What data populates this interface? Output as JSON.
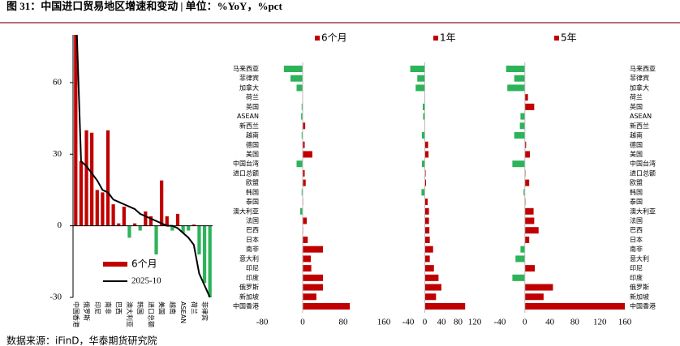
{
  "title": "图 31：中国进口贸易地区增速和变动 | 单位：%YoY，%pct",
  "source": "数据来源：iFinD，华泰期货研究院",
  "chart_data": [
    {
      "type": "bar_line",
      "categories": [
        "中国香港",
        null,
        "俄罗斯",
        null,
        "印尼",
        null,
        "南非",
        null,
        "巴西",
        null,
        "澳大利亚",
        null,
        "韩国",
        null,
        "进口总额",
        null,
        "美国",
        null,
        "越南",
        null,
        "ASEAN",
        null,
        "荷兰",
        null,
        "菲律宾",
        null
      ],
      "series": [
        {
          "name": "6个月",
          "type": "bar",
          "color": "#c00000",
          "negative_color": "#2db35a",
          "values": [
            93,
            27,
            40,
            39,
            15,
            14,
            40,
            9,
            1,
            8,
            -5,
            1,
            -2,
            6,
            4,
            -12,
            19,
            4,
            -2,
            5,
            -3,
            -2,
            0.5,
            -12,
            -24,
            -37
          ]
        },
        {
          "name": "2025-10",
          "type": "line",
          "color": "#000000",
          "values": [
            95,
            27,
            25,
            22,
            19,
            15,
            14,
            11,
            10,
            9,
            8,
            7,
            5,
            4,
            3,
            2,
            1,
            0,
            0,
            -1,
            -3,
            -5,
            -8,
            -20,
            -25,
            -30
          ]
        }
      ],
      "ylim": [
        -30,
        80
      ],
      "yticks": [
        -30,
        0,
        30,
        60
      ]
    },
    {
      "type": "hbar",
      "category_side": "left",
      "categories": [
        "马来西亚",
        "菲律宾",
        "加拿大",
        "荷兰",
        "英国",
        "ASEAN",
        "新西兰",
        "越南",
        "德国",
        "美国",
        "中国台湾",
        "进口总额",
        "欧盟",
        "韩国",
        "泰国",
        "澳大利亚",
        "法国",
        "巴西",
        "日本",
        "南非",
        "意大利",
        "印尼",
        "印度",
        "俄罗斯",
        "新加坡",
        "中国香港"
      ],
      "series": [
        {
          "name": "6个月",
          "color": "#c00000",
          "negative_color": "#2db35a",
          "values": [
            -37,
            -24,
            -12,
            0.5,
            -2,
            -3,
            5,
            -2,
            4,
            19,
            -12,
            4,
            6,
            -2,
            1,
            -5,
            8,
            1,
            10,
            40,
            16,
            17,
            40,
            40,
            27,
            93
          ]
        }
      ],
      "xlim": [
        -80,
        160
      ],
      "xticks": [
        -80,
        0,
        80,
        160
      ]
    },
    {
      "type": "hbar",
      "series": [
        {
          "name": "1年",
          "color": "#c00000",
          "negative_color": "#2db35a",
          "values": [
            -35,
            -18,
            -22,
            1,
            -5,
            -4,
            1,
            -7,
            8,
            9,
            -7,
            2,
            3,
            -8,
            7,
            10,
            10,
            11,
            12,
            20,
            12,
            22,
            33,
            40,
            27,
            97
          ]
        }
      ],
      "xlim": [
        -40,
        120
      ],
      "xticks": [
        -40,
        0,
        40,
        80,
        120
      ]
    },
    {
      "type": "hbar",
      "category_side": "right",
      "categories": [
        "马来西亚",
        "菲律宾",
        "加拿大",
        "荷兰",
        "英国",
        "ASEAN",
        "新西兰",
        "越南",
        "德国",
        "美国",
        "中国台湾",
        "进口总额",
        "欧盟",
        "韩国",
        "泰国",
        "澳大利亚",
        "法国",
        "巴西",
        "日本",
        "南非",
        "意大利",
        "印尼",
        "印度",
        "俄罗斯",
        "新加坡",
        "中国香港"
      ],
      "series": [
        {
          "name": "5年",
          "color": "#c00000",
          "negative_color": "#2db35a",
          "values": [
            -30,
            -17,
            -28,
            5,
            15,
            -7,
            -8,
            -17,
            2,
            8,
            -20,
            1,
            7,
            -2,
            1,
            14,
            15,
            22,
            7,
            -7,
            -15,
            16,
            -20,
            45,
            30,
            160
          ]
        }
      ],
      "xlim": [
        -40,
        160
      ],
      "xticks": [
        -40,
        0,
        40,
        80,
        120,
        160
      ]
    }
  ]
}
